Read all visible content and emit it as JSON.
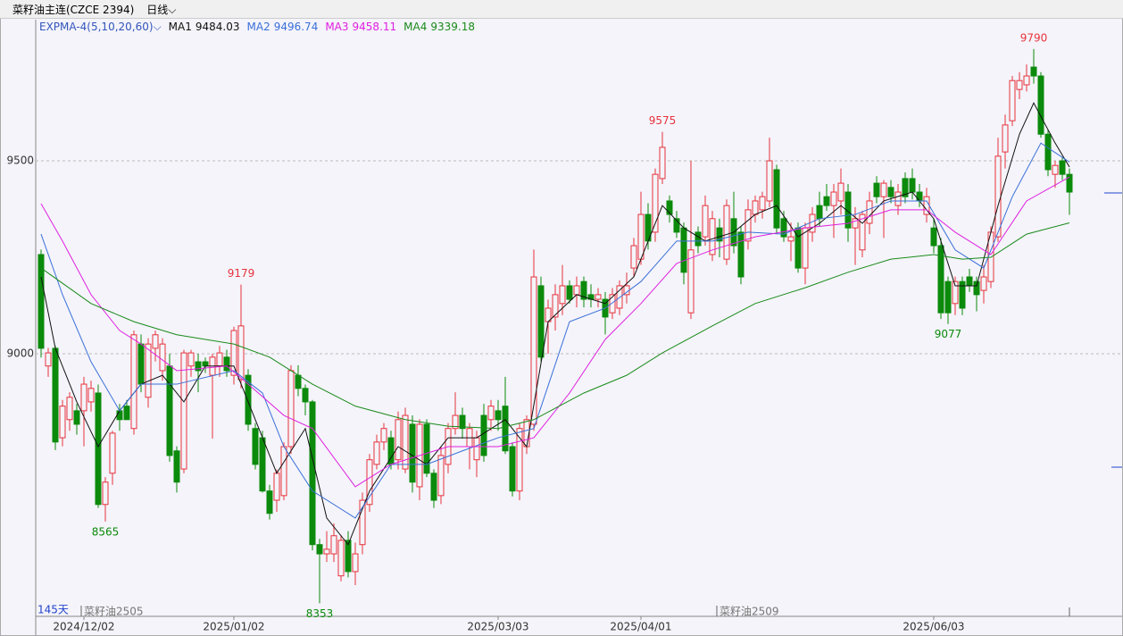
{
  "header": {
    "title": "菜籽油主连(CZCE 2394)",
    "period": "日线"
  },
  "chart_data": {
    "type": "candlestick",
    "indicator": "EXPMA-4(5,10,20,60)",
    "up_color": "#e8323c",
    "down_color": "#0b8a0b",
    "ylim": [
      8319,
      9866
    ],
    "yticks": [
      9000,
      9500
    ],
    "grid": true,
    "xlim": [
      -0.5,
      151.5
    ],
    "xticks": [
      {
        "value": 6,
        "label": "2024/12/02"
      },
      {
        "value": 27,
        "label": "2025/01/02"
      },
      {
        "value": 64,
        "label": "2025/03/03"
      },
      {
        "value": 84,
        "label": "2025/04/01"
      },
      {
        "value": 125,
        "label": "2025/06/03"
      }
    ],
    "ohlc": [
      [
        9257,
        9270,
        8990,
        9014
      ],
      [
        8968,
        9015,
        8940,
        9002
      ],
      [
        9014,
        9020,
        8750,
        8771
      ],
      [
        8782,
        8880,
        8760,
        8864
      ],
      [
        8829,
        8900,
        8800,
        8887
      ],
      [
        8852,
        8870,
        8790,
        8817
      ],
      [
        8852,
        8940,
        8760,
        8921
      ],
      [
        8875,
        8930,
        8850,
        8910
      ],
      [
        8898,
        8920,
        8600,
        8609
      ],
      [
        8609,
        8680,
        8565,
        8667
      ],
      [
        8690,
        8800,
        8660,
        8794
      ],
      [
        8852,
        8870,
        8800,
        8829
      ],
      [
        8864,
        8880,
        8830,
        8829
      ],
      [
        8806,
        9060,
        8790,
        9049
      ],
      [
        9025,
        9050,
        8900,
        8921
      ],
      [
        8887,
        9040,
        8860,
        9025
      ],
      [
        9014,
        9060,
        8980,
        9049
      ],
      [
        8956,
        9040,
        8930,
        9025
      ],
      [
        8968,
        9000,
        8720,
        8736
      ],
      [
        8748,
        8760,
        8640,
        8667
      ],
      [
        8701,
        9010,
        8690,
        9002
      ],
      [
        8968,
        9010,
        8940,
        9002
      ],
      [
        8979,
        9000,
        8900,
        8956
      ],
      [
        8979,
        8990,
        8950,
        8968
      ],
      [
        8944,
        9000,
        8780,
        8991
      ],
      [
        8968,
        9020,
        8940,
        9002
      ],
      [
        8991,
        9010,
        8940,
        8956
      ],
      [
        8944,
        9070,
        8920,
        9060
      ],
      [
        8933,
        9179,
        8910,
        9072
      ],
      [
        8944,
        8960,
        8800,
        8817
      ],
      [
        8806,
        8820,
        8700,
        8713
      ],
      [
        8782,
        8800,
        8640,
        8644
      ],
      [
        8644,
        8660,
        8570,
        8586
      ],
      [
        8620,
        8700,
        8590,
        8690
      ],
      [
        8632,
        8770,
        8620,
        8759
      ],
      [
        8759,
        8970,
        8740,
        8956
      ],
      [
        8944,
        8970,
        8890,
        8910
      ],
      [
        8910,
        8920,
        8840,
        8875
      ],
      [
        8875,
        8880,
        8490,
        8505
      ],
      [
        8505,
        8520,
        8353,
        8481
      ],
      [
        8481,
        8540,
        8460,
        8493
      ],
      [
        8481,
        8560,
        8460,
        8528
      ],
      [
        8424,
        8530,
        8410,
        8516
      ],
      [
        8516,
        8540,
        8420,
        8435
      ],
      [
        8435,
        8510,
        8400,
        8481
      ],
      [
        8505,
        8640,
        8480,
        8620
      ],
      [
        8609,
        8740,
        8590,
        8725
      ],
      [
        8713,
        8790,
        8700,
        8771
      ],
      [
        8771,
        8820,
        8750,
        8806
      ],
      [
        8782,
        8800,
        8700,
        8713
      ],
      [
        8725,
        8850,
        8700,
        8829
      ],
      [
        8701,
        8860,
        8690,
        8840
      ],
      [
        8817,
        8840,
        8640,
        8667
      ],
      [
        8655,
        8830,
        8620,
        8817
      ],
      [
        8817,
        8830,
        8680,
        8690
      ],
      [
        8690,
        8700,
        8600,
        8620
      ],
      [
        8632,
        8760,
        8610,
        8736
      ],
      [
        8713,
        8820,
        8690,
        8806
      ],
      [
        8806,
        8900,
        8790,
        8840
      ],
      [
        8840,
        8860,
        8780,
        8806
      ],
      [
        8759,
        8820,
        8700,
        8806
      ],
      [
        8725,
        8800,
        8680,
        8782
      ],
      [
        8840,
        8870,
        8720,
        8736
      ],
      [
        8829,
        8880,
        8800,
        8864
      ],
      [
        8852,
        8880,
        8800,
        8829
      ],
      [
        8864,
        8940,
        8740,
        8748
      ],
      [
        8759,
        8770,
        8630,
        8644
      ],
      [
        8644,
        8820,
        8620,
        8806
      ],
      [
        8759,
        8840,
        8740,
        8829
      ],
      [
        8817,
        9270,
        8800,
        9199
      ],
      [
        9176,
        9200,
        8980,
        8991
      ],
      [
        9083,
        9140,
        9000,
        9118
      ],
      [
        9095,
        9180,
        9060,
        9153
      ],
      [
        9130,
        9230,
        9100,
        9176
      ],
      [
        9176,
        9190,
        9130,
        9141
      ],
      [
        9153,
        9200,
        9120,
        9176
      ],
      [
        9187,
        9200,
        9120,
        9141
      ],
      [
        9153,
        9180,
        9120,
        9141
      ],
      [
        9141,
        9170,
        9120,
        9153
      ],
      [
        9141,
        9160,
        9050,
        9095
      ],
      [
        9106,
        9170,
        9090,
        9153
      ],
      [
        9118,
        9190,
        9100,
        9176
      ],
      [
        9153,
        9210,
        9130,
        9176
      ],
      [
        9222,
        9300,
        9200,
        9280
      ],
      [
        9245,
        9420,
        9230,
        9361
      ],
      [
        9361,
        9390,
        9270,
        9292
      ],
      [
        9315,
        9480,
        9290,
        9465
      ],
      [
        9454,
        9575,
        9440,
        9535
      ],
      [
        9396,
        9410,
        9340,
        9361
      ],
      [
        9350,
        9370,
        9300,
        9315
      ],
      [
        9326,
        9340,
        9180,
        9211
      ],
      [
        9106,
        9500,
        9090,
        9269
      ],
      [
        9315,
        9330,
        9260,
        9280
      ],
      [
        9303,
        9410,
        9280,
        9384
      ],
      [
        9257,
        9370,
        9240,
        9350
      ],
      [
        9326,
        9350,
        9250,
        9292
      ],
      [
        9245,
        9400,
        9230,
        9384
      ],
      [
        9350,
        9420,
        9260,
        9280
      ],
      [
        9315,
        9330,
        9180,
        9199
      ],
      [
        9292,
        9400,
        9270,
        9373
      ],
      [
        9361,
        9410,
        9340,
        9396
      ],
      [
        9373,
        9420,
        9350,
        9407
      ],
      [
        9396,
        9560,
        9380,
        9500
      ],
      [
        9477,
        9490,
        9310,
        9326
      ],
      [
        9350,
        9370,
        9290,
        9303
      ],
      [
        9292,
        9340,
        9240,
        9303
      ],
      [
        9326,
        9340,
        9210,
        9222
      ],
      [
        9222,
        9340,
        9180,
        9326
      ],
      [
        9315,
        9380,
        9290,
        9361
      ],
      [
        9384,
        9420,
        9330,
        9350
      ],
      [
        9407,
        9440,
        9370,
        9384
      ],
      [
        9384,
        9440,
        9300,
        9419
      ],
      [
        9396,
        9480,
        9360,
        9442
      ],
      [
        9419,
        9440,
        9290,
        9326
      ],
      [
        9326,
        9380,
        9230,
        9350
      ],
      [
        9269,
        9370,
        9250,
        9361
      ],
      [
        9338,
        9420,
        9310,
        9396
      ],
      [
        9442,
        9460,
        9390,
        9407
      ],
      [
        9407,
        9450,
        9300,
        9442
      ],
      [
        9431,
        9450,
        9390,
        9407
      ],
      [
        9384,
        9440,
        9360,
        9419
      ],
      [
        9454,
        9470,
        9390,
        9407
      ],
      [
        9454,
        9480,
        9400,
        9419
      ],
      [
        9419,
        9440,
        9380,
        9396
      ],
      [
        9361,
        9430,
        9340,
        9407
      ],
      [
        9326,
        9350,
        9260,
        9280
      ],
      [
        9280,
        9300,
        9090,
        9106
      ],
      [
        9187,
        9200,
        9077,
        9106
      ],
      [
        9130,
        9200,
        9100,
        9187
      ],
      [
        9187,
        9200,
        9100,
        9118
      ],
      [
        9199,
        9220,
        9160,
        9176
      ],
      [
        9187,
        9200,
        9110,
        9153
      ],
      [
        9164,
        9230,
        9130,
        9199
      ],
      [
        9187,
        9330,
        9170,
        9315
      ],
      [
        9303,
        9560,
        9290,
        9512
      ],
      [
        9523,
        9620,
        9480,
        9593
      ],
      [
        9604,
        9720,
        9590,
        9708
      ],
      [
        9685,
        9730,
        9660,
        9708
      ],
      [
        9697,
        9750,
        9680,
        9720
      ],
      [
        9743,
        9790,
        9700,
        9720
      ],
      [
        9720,
        9730,
        9560,
        9569
      ],
      [
        9569,
        9580,
        9460,
        9477
      ],
      [
        9465,
        9500,
        9430,
        9488
      ],
      [
        9500,
        9510,
        9450,
        9465
      ],
      [
        9465,
        9480,
        9360,
        9419
      ]
    ],
    "series": [
      {
        "name": "MA1",
        "color": "#111111",
        "x": [
          0,
          2,
          5,
          8,
          11,
          14,
          17,
          20,
          23,
          27,
          30,
          33,
          37,
          40,
          43,
          46,
          50,
          54,
          57,
          61,
          65,
          68,
          71,
          75,
          79,
          83,
          87,
          90,
          93,
          97,
          100,
          103,
          106,
          109,
          112,
          115,
          118,
          122,
          125,
          128,
          131,
          134,
          137,
          139,
          142,
          144
        ],
        "values": [
          9199,
          9014,
          8875,
          8759,
          8852,
          8921,
          8944,
          8875,
          8968,
          8968,
          8829,
          8690,
          8806,
          8574,
          8505,
          8644,
          8759,
          8713,
          8782,
          8782,
          8829,
          8759,
          9083,
          9153,
          9130,
          9199,
          9384,
          9326,
          9292,
          9315,
          9361,
          9384,
          9303,
          9338,
          9384,
          9338,
          9396,
          9419,
          9350,
          9176,
          9176,
          9384,
          9569,
          9650,
          9546,
          9484.03
        ]
      },
      {
        "name": "MA2",
        "color": "#3a6fd8",
        "x": [
          0,
          3,
          7,
          11,
          14,
          19,
          27,
          31,
          34,
          38,
          44,
          49,
          54,
          59,
          64,
          69,
          74,
          79,
          84,
          89,
          94,
          99,
          104,
          109,
          114,
          119,
          124,
          128,
          132,
          136,
          140,
          144
        ],
        "values": [
          9310,
          9153,
          8979,
          8852,
          8921,
          8921,
          8956,
          8898,
          8759,
          8644,
          8574,
          8713,
          8713,
          8748,
          8782,
          8806,
          9083,
          9118,
          9187,
          9292,
          9292,
          9315,
          9310,
          9350,
          9361,
          9396,
          9396,
          9269,
          9222,
          9407,
          9546,
          9496.74
        ]
      },
      {
        "name": "MA3",
        "color": "#e020e0",
        "x": [
          0,
          3,
          7,
          11,
          14,
          19,
          26,
          29,
          34,
          38,
          44,
          49,
          57,
          64,
          69,
          74,
          79,
          84,
          89,
          94,
          100,
          107,
          113,
          119,
          124,
          128,
          133,
          138,
          144
        ],
        "values": [
          9389,
          9292,
          9153,
          9060,
          9025,
          8956,
          8968,
          8921,
          8840,
          8806,
          8655,
          8713,
          8759,
          8759,
          8782,
          8898,
          9037,
          9130,
          9234,
          9269,
          9303,
          9326,
          9338,
          9373,
          9373,
          9315,
          9257,
          9396,
          9458.11
        ]
      },
      {
        "name": "MA4",
        "color": "#1a8a1a",
        "x": [
          0,
          7,
          13,
          19,
          27,
          32,
          38,
          44,
          51,
          57,
          64,
          69,
          76,
          82,
          87,
          94,
          100,
          107,
          113,
          119,
          125,
          129,
          133,
          138,
          144
        ],
        "values": [
          9222,
          9130,
          9083,
          9049,
          9025,
          8991,
          8921,
          8864,
          8829,
          8812,
          8806,
          8829,
          8898,
          8944,
          9002,
          9072,
          9130,
          9171,
          9211,
          9245,
          9257,
          9245,
          9250,
          9310,
          9339.18
        ]
      }
    ],
    "annotations": [
      {
        "x": 28,
        "value": 9179
      },
      {
        "x": 9,
        "value": 8565
      },
      {
        "x": 39,
        "value": 8353
      },
      {
        "x": 87,
        "value": 9575
      },
      {
        "x": 127,
        "value": 9077
      },
      {
        "x": 139,
        "value": 9790
      }
    ],
    "day_count": "145天",
    "contracts": [
      {
        "x": 6,
        "label": "菜籽油2505"
      },
      {
        "x": 95,
        "label": "菜籽油2509"
      }
    ]
  }
}
